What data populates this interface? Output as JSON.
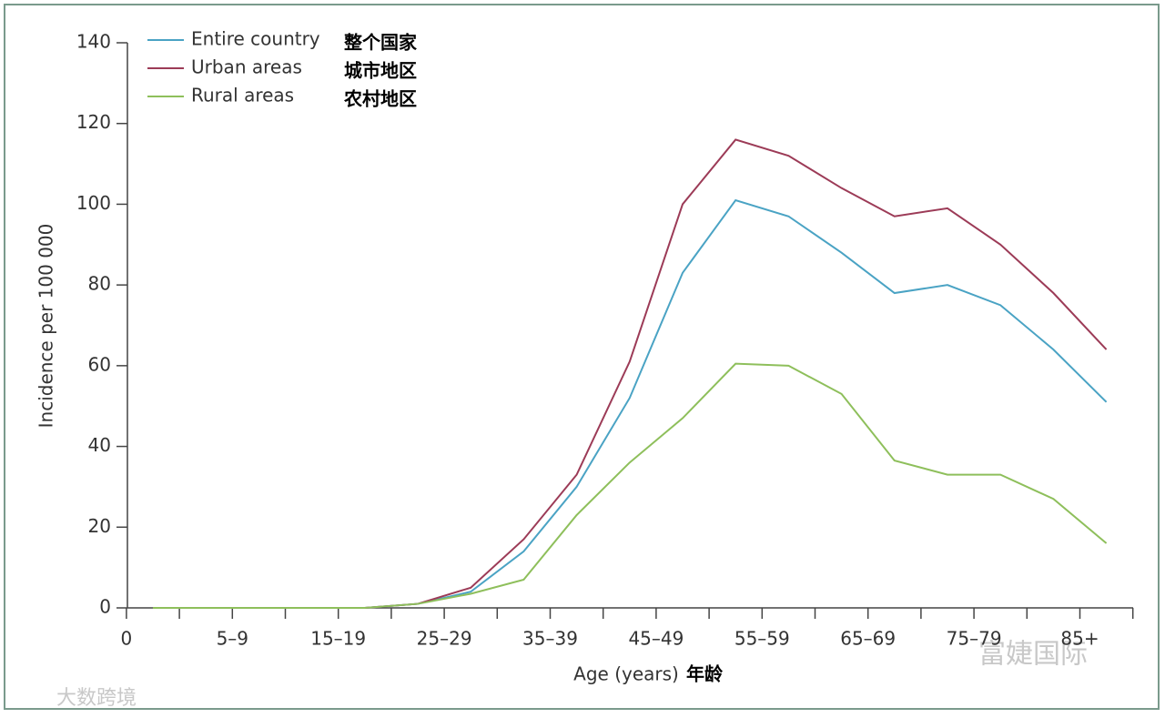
{
  "chart_data": {
    "type": "line",
    "ylabel": "Incidence per 100 000",
    "xlabel": "Age (years)",
    "xlabel_annotation": "年龄",
    "categories": [
      "0",
      null,
      "5–9",
      null,
      "15–19",
      null,
      "25–29",
      null,
      "35–39",
      null,
      "45–49",
      null,
      "55–59",
      null,
      "65–69",
      null,
      "75–79",
      null,
      "85+"
    ],
    "series": [
      {
        "name": "Entire country",
        "annotation": "整个国家",
        "color": "#4aa3c4",
        "values": [
          0,
          0,
          0,
          0,
          0,
          1,
          4,
          14,
          30,
          52,
          83,
          101,
          97,
          88,
          78,
          80,
          75,
          64,
          51
        ]
      },
      {
        "name": "Urban areas",
        "annotation": "城市地区",
        "color": "#9c3b57",
        "values": [
          0,
          0,
          0,
          0,
          0,
          1,
          5,
          17,
          33,
          61,
          100,
          116,
          112,
          104,
          97,
          99,
          90,
          78,
          64
        ]
      },
      {
        "name": "Rural areas",
        "annotation": "农村地区",
        "color": "#8ebf5b",
        "values": [
          0,
          0,
          0,
          0,
          0,
          1,
          3.5,
          7,
          23,
          36,
          47,
          60.5,
          60,
          53,
          36.5,
          33,
          33,
          27,
          16
        ]
      }
    ],
    "ylim": [
      0,
      140
    ],
    "yticks": [
      0,
      20,
      40,
      60,
      80,
      100,
      120,
      140
    ],
    "grid": false,
    "watermarks": [
      "富婕国际",
      "大数跨境"
    ]
  }
}
